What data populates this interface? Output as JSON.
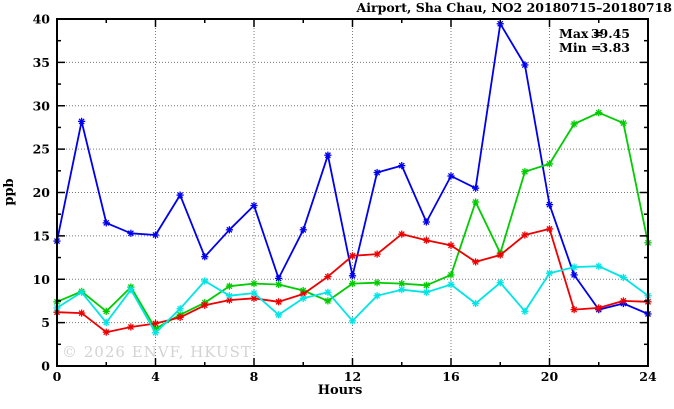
{
  "title": "Airport, Sha Chau, NO2 20180715–20180718",
  "watermark": "© 2026 ENVF, HKUST",
  "stats": {
    "max_label": "Max =",
    "max_value": "39.45",
    "min_label": "Min =",
    "min_value": "3.83"
  },
  "chart_data": {
    "type": "line",
    "title": "Airport, Sha Chau, NO2 20180715–20180718",
    "xlabel": "Hours",
    "ylabel": "ppb",
    "xlim": [
      0,
      24
    ],
    "ylim": [
      0,
      40
    ],
    "xticks": [
      0,
      4,
      8,
      12,
      16,
      20,
      24
    ],
    "xminorticks": [
      2,
      6,
      10,
      14,
      18,
      22
    ],
    "yticks": [
      0,
      5,
      10,
      15,
      20,
      25,
      30,
      35,
      40
    ],
    "yminorticks": [
      2.5,
      7.5,
      12.5,
      17.5,
      22.5,
      27.5,
      32.5,
      37.5
    ],
    "grid": true,
    "legend": false,
    "annotations": [
      "Max = 39.45",
      "Min =  3.83"
    ],
    "x": [
      0,
      1,
      2,
      3,
      4,
      5,
      6,
      7,
      8,
      9,
      10,
      11,
      12,
      13,
      14,
      15,
      16,
      17,
      18,
      19,
      20,
      21,
      22,
      23,
      24
    ],
    "series": [
      {
        "name": "blue",
        "color": "#0000ee",
        "values": [
          14.4,
          28.2,
          16.5,
          15.3,
          15.1,
          19.7,
          12.6,
          15.7,
          18.5,
          10.1,
          15.7,
          24.3,
          10.4,
          22.3,
          23.1,
          16.6,
          21.9,
          20.5,
          39.45,
          34.7,
          18.6,
          10.5,
          6.5,
          7.2,
          6.0
        ]
      },
      {
        "name": "green",
        "color": "#00cc00",
        "values": [
          7.4,
          8.6,
          6.3,
          9.1,
          4.3,
          5.9,
          7.3,
          9.2,
          9.5,
          9.4,
          8.7,
          7.5,
          9.5,
          9.6,
          9.5,
          9.3,
          10.5,
          18.9,
          13.0,
          22.4,
          23.3,
          27.9,
          29.2,
          28.0,
          14.2
        ]
      },
      {
        "name": "red",
        "color": "#ee0000",
        "values": [
          6.2,
          6.1,
          3.9,
          4.5,
          4.9,
          5.6,
          7.0,
          7.6,
          7.8,
          7.4,
          8.3,
          10.3,
          12.7,
          12.9,
          15.2,
          14.5,
          13.9,
          12.0,
          12.8,
          15.1,
          15.8,
          6.5,
          6.7,
          7.5,
          7.4
        ]
      },
      {
        "name": "cyan",
        "color": "#00e5e5",
        "values": [
          6.7,
          8.5,
          5.0,
          8.8,
          3.83,
          6.6,
          9.8,
          8.1,
          8.4,
          5.9,
          7.8,
          8.5,
          5.2,
          8.1,
          8.8,
          8.5,
          9.4,
          7.2,
          9.6,
          6.3,
          10.7,
          11.4,
          11.5,
          10.2,
          8.1
        ]
      }
    ],
    "colors": {
      "grid": "#7a7a7a",
      "axis": "#000000",
      "background": "#ffffff"
    }
  }
}
